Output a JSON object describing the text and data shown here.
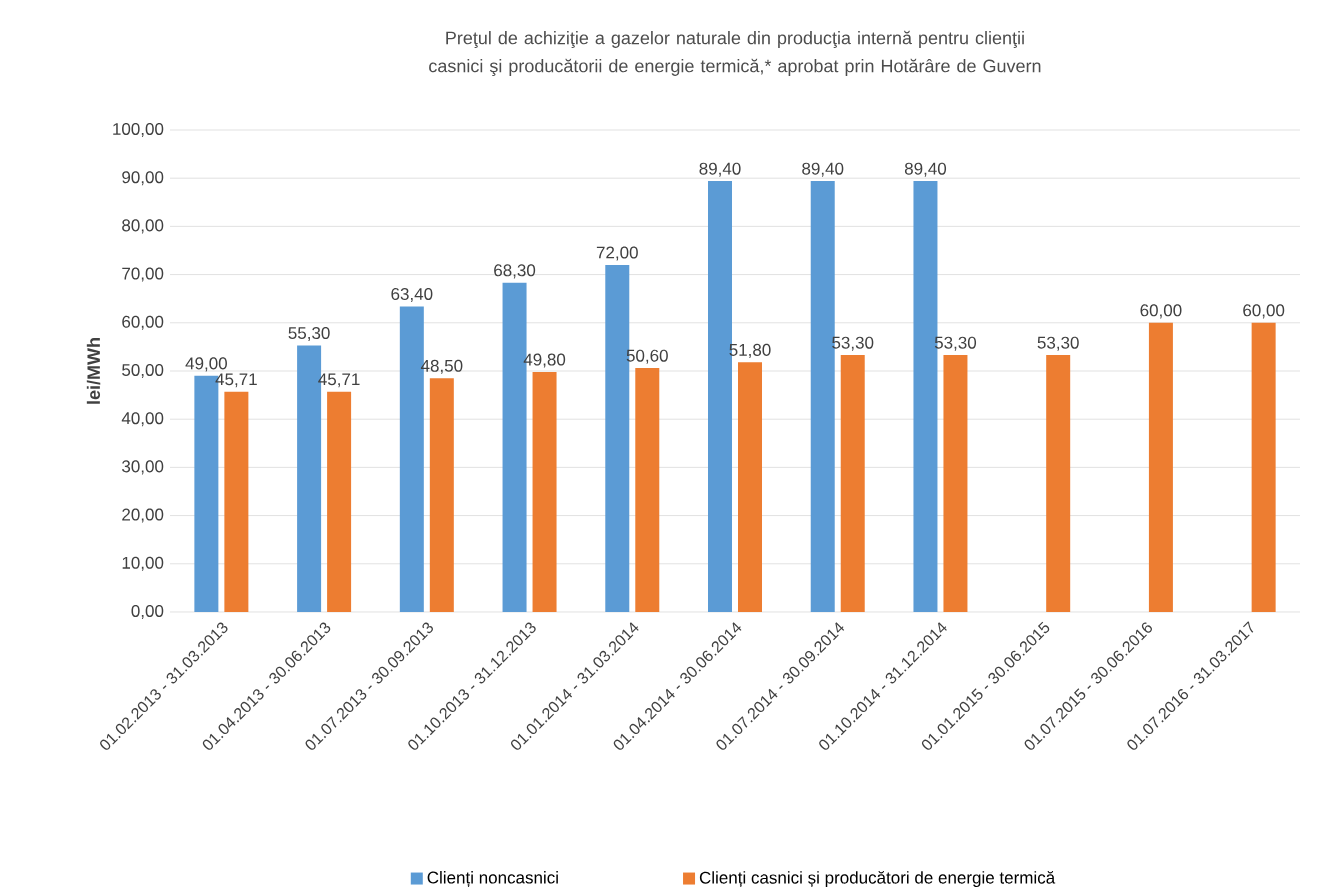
{
  "chart_data": {
    "type": "bar",
    "title": "Preţul de achiziţie a gazelor naturale din producţia internă pentru clienţii casnici şi producătorii de energie termică,* aprobat prin Hotărâre de Guvern",
    "ylabel": "lei/MWh",
    "categories": [
      "01.02.2013 - 31.03.2013",
      "01.04.2013 - 30.06.2013",
      "01.07.2013 - 30.09.2013",
      "01.10.2013 - 31.12.2013",
      "01.01.2014 - 31.03.2014",
      "01.04.2014 - 30.06.2014",
      "01.07.2014 - 30.09.2014",
      "01.10.2014 - 31.12.2014",
      "01.01.2015 - 30.06.2015",
      "01.07.2015 - 30.06.2016",
      "01.07.2016 - 31.03.2017"
    ],
    "series": [
      {
        "name": "Clienți noncasnici",
        "color": "#5b9bd5",
        "values": [
          49.0,
          55.3,
          63.4,
          68.3,
          72.0,
          89.4,
          89.4,
          89.4,
          null,
          null,
          null
        ],
        "value_labels": [
          "49,00",
          "55,30",
          "63,40",
          "68,30",
          "72,00",
          "89,40",
          "89,40",
          "89,40",
          null,
          null,
          null
        ]
      },
      {
        "name": "Clienți casnici și producători de energie termică",
        "color": "#ed7d31",
        "values": [
          45.71,
          45.71,
          48.5,
          49.8,
          50.6,
          51.8,
          53.3,
          53.3,
          53.3,
          60.0,
          60.0
        ],
        "value_labels": [
          "45,71",
          "45,71",
          "48,50",
          "49,80",
          "50,60",
          "51,80",
          "53,30",
          "53,30",
          "53,30",
          "60,00",
          "60,00"
        ]
      }
    ],
    "ylim": [
      0,
      100
    ],
    "yticks": [
      {
        "value": 0,
        "label": "0,00"
      },
      {
        "value": 10,
        "label": "10,00"
      },
      {
        "value": 20,
        "label": "20,00"
      },
      {
        "value": 30,
        "label": "30,00"
      },
      {
        "value": 40,
        "label": "40,00"
      },
      {
        "value": 50,
        "label": "50,00"
      },
      {
        "value": 60,
        "label": "60,00"
      },
      {
        "value": 70,
        "label": "70,00"
      },
      {
        "value": 80,
        "label": "80,00"
      },
      {
        "value": 90,
        "label": "90,00"
      },
      {
        "value": 100,
        "label": "100,00"
      }
    ],
    "grid": "y",
    "legend": "bottom"
  }
}
